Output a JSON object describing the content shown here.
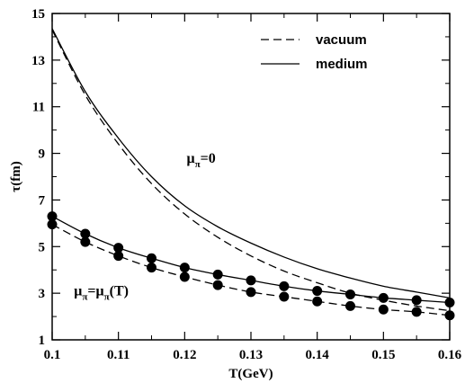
{
  "chart_data": {
    "type": "line",
    "title": "",
    "xlabel": "T(GeV)",
    "ylabel": "τ(fm)",
    "xlim": [
      0.1,
      0.16
    ],
    "ylim": [
      1,
      15
    ],
    "xticks": [
      "0.1",
      "0.11",
      "0.12",
      "0.13",
      "0.14",
      "0.15",
      "0.16"
    ],
    "xtick_values": [
      0.1,
      0.11,
      0.12,
      0.13,
      0.14,
      0.15,
      0.16
    ],
    "yticks": [
      "1",
      "3",
      "5",
      "7",
      "9",
      "11",
      "13",
      "15"
    ],
    "ytick_values": [
      1,
      3,
      5,
      7,
      9,
      11,
      13,
      15
    ],
    "minor_xticks": [
      0.105,
      0.115,
      0.125,
      0.135,
      0.145,
      0.155
    ],
    "minor_yticks": [
      2,
      4,
      6,
      8,
      10,
      12,
      14
    ],
    "grid": false,
    "legend_position": "top-right",
    "legend": [
      {
        "label": "vacuum",
        "style": "dashed"
      },
      {
        "label": "medium",
        "style": "solid"
      }
    ],
    "annotations": [
      {
        "text_main": "μ",
        "text_sub": "π",
        "text_tail": "=0",
        "x": 0.1203,
        "y": 8.6
      },
      {
        "text_main": "μ",
        "text_sub": "π",
        "text_mid": "=μ",
        "text_sub2": "π",
        "text_tail": "(T)",
        "x": 0.1033,
        "y": 2.9
      }
    ],
    "series": [
      {
        "name": "vacuum",
        "style": "dashed",
        "markers": false,
        "x": [
          0.1,
          0.105,
          0.11,
          0.115,
          0.12,
          0.125,
          0.13,
          0.135,
          0.14,
          0.145,
          0.15,
          0.155,
          0.16
        ],
        "y": [
          14.3,
          11.5,
          9.4,
          7.7,
          6.4,
          5.4,
          4.6,
          3.95,
          3.45,
          3.0,
          2.7,
          2.45,
          2.25
        ]
      },
      {
        "name": "medium",
        "style": "solid",
        "markers": false,
        "x": [
          0.1,
          0.105,
          0.11,
          0.115,
          0.12,
          0.125,
          0.13,
          0.135,
          0.14,
          0.145,
          0.15,
          0.155,
          0.16
        ],
        "y": [
          14.35,
          11.65,
          9.65,
          8.0,
          6.75,
          5.85,
          5.15,
          4.55,
          4.05,
          3.65,
          3.3,
          3.05,
          2.8
        ]
      },
      {
        "style": "dashed",
        "markers": true,
        "x": [
          0.1,
          0.105,
          0.11,
          0.115,
          0.12,
          0.125,
          0.13,
          0.135,
          0.14,
          0.145,
          0.15,
          0.155,
          0.16
        ],
        "y": [
          5.95,
          5.2,
          4.6,
          4.1,
          3.7,
          3.35,
          3.05,
          2.85,
          2.65,
          2.45,
          2.3,
          2.2,
          2.05
        ]
      },
      {
        "style": "solid",
        "markers": true,
        "x": [
          0.1,
          0.105,
          0.11,
          0.115,
          0.12,
          0.125,
          0.13,
          0.135,
          0.14,
          0.145,
          0.15,
          0.155,
          0.16
        ],
        "y": [
          6.3,
          5.55,
          4.95,
          4.5,
          4.1,
          3.8,
          3.55,
          3.3,
          3.1,
          2.95,
          2.8,
          2.7,
          2.6
        ]
      }
    ]
  }
}
